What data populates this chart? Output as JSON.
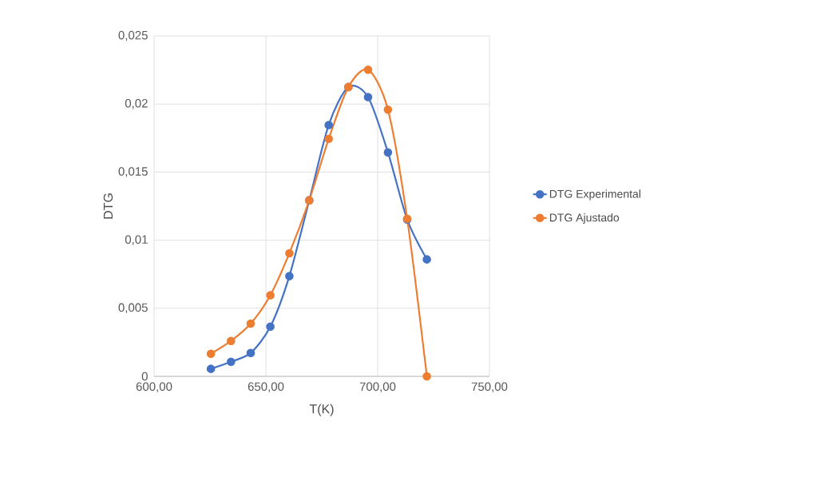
{
  "chart_data": {
    "type": "line",
    "xlabel": "T(K)",
    "ylabel": "DTG",
    "series": [
      {
        "name": "DTG Experimental",
        "color": "#4472c4",
        "x": [
          625.4,
          634.4,
          643.2,
          652.0,
          660.5,
          669.4,
          678.1,
          686.9,
          695.7,
          704.6,
          713.2,
          722.0
        ],
        "values": [
          0.00055,
          0.00107,
          0.00172,
          0.00365,
          0.00736,
          0.01293,
          0.01846,
          0.02125,
          0.02051,
          0.01645,
          0.01152,
          0.00859
        ]
      },
      {
        "name": "DTG Ajustado",
        "color": "#ed7d31",
        "x": [
          625.4,
          634.4,
          643.2,
          652.0,
          660.5,
          669.4,
          678.1,
          686.9,
          695.7,
          704.6,
          713.2,
          722.0
        ],
        "values": [
          0.00166,
          0.0026,
          0.00387,
          0.00596,
          0.00904,
          0.01293,
          0.01744,
          0.02125,
          0.02252,
          0.01959,
          0.01158,
          0
        ]
      }
    ],
    "xlim": [
      600,
      750
    ],
    "xticks": [
      {
        "value": 600,
        "label": "600,00"
      },
      {
        "value": 650,
        "label": "650,00"
      },
      {
        "value": 700,
        "label": "700,00"
      },
      {
        "value": 750,
        "label": "750,00"
      }
    ],
    "ylim": [
      0,
      0.025
    ],
    "yticks": [
      0,
      {
        "value": 0.005,
        "label": "0,005"
      },
      {
        "value": 0.01,
        "label": "0,01"
      },
      {
        "value": 0.015,
        "label": "0,015"
      },
      {
        "value": 0.02,
        "label": "0,02"
      },
      {
        "value": 0.025,
        "label": "0,025"
      }
    ],
    "grid": true,
    "legend": "right",
    "marker": "circle",
    "line_style": "solid"
  }
}
